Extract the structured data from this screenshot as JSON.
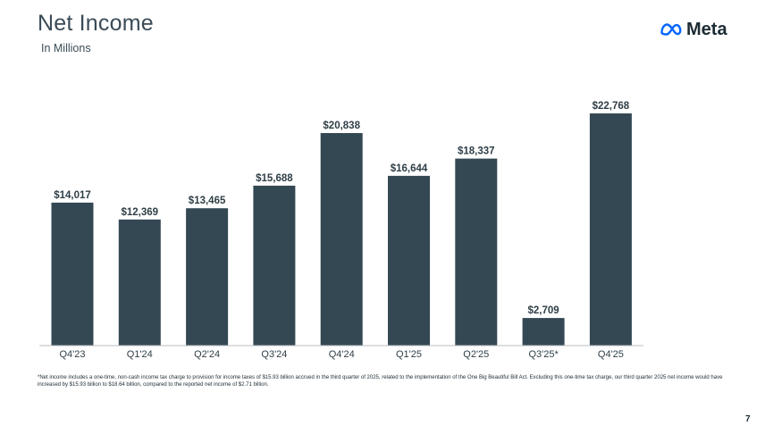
{
  "header": {
    "title": "Net Income",
    "subtitle": "In Millions"
  },
  "logo": {
    "text": "Meta",
    "icon": "meta-infinity-icon",
    "color": "#0866FF"
  },
  "chart_data": {
    "type": "bar",
    "title": "Net Income",
    "subtitle": "In Millions",
    "categories": [
      "Q4'23",
      "Q1'24",
      "Q2'24",
      "Q3'24",
      "Q4'24",
      "Q1'25",
      "Q2'25",
      "Q3'25*",
      "Q4'25"
    ],
    "values": [
      14017,
      12369,
      13465,
      15688,
      20838,
      16644,
      18337,
      2709,
      22768
    ],
    "data_labels": [
      "$14,017",
      "$12,369",
      "$13,465",
      "$15,688",
      "$20,838",
      "$16,644",
      "$18,337",
      "$2,709",
      "$22,768"
    ],
    "xlabel": "",
    "ylabel": "",
    "ylim": [
      0,
      22768
    ],
    "grid": false,
    "bar_color": "#344854"
  },
  "footnote": "*Net income includes a one-time, non-cash income tax charge to provision for income taxes of $15.93 billion accrued in the third quarter of 2025, related to the implementation of the One Big Beautiful Bill Act. Excluding this one-time tax charge, our third quarter 2025 net income would have increased by $15.93 billion to $18.64 billion, compared to the reported net income of $2.71 billion.",
  "page_number": "7"
}
